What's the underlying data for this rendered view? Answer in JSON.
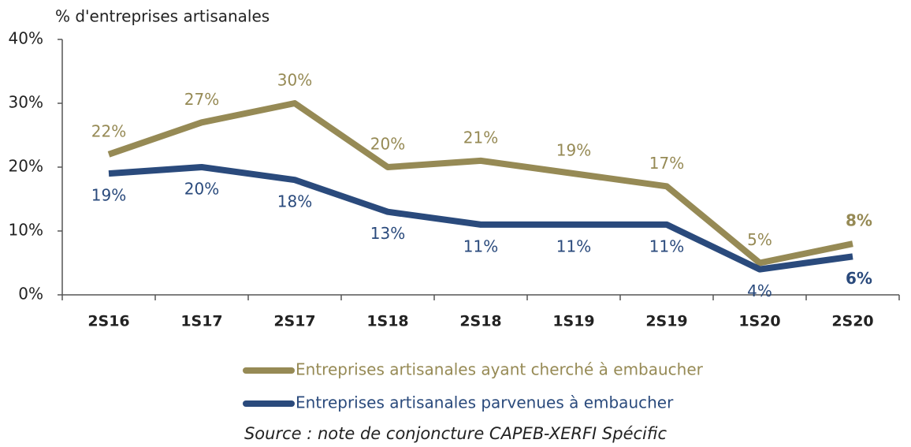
{
  "chart_data": {
    "type": "line",
    "y_axis_label": "% d'entreprises artisanales",
    "categories": [
      "2S16",
      "1S17",
      "2S17",
      "1S18",
      "2S18",
      "1S19",
      "2S19",
      "1S20",
      "2S20"
    ],
    "series": [
      {
        "name": "Entreprises artisanales ayant cherché à embaucher",
        "color": "#968a55",
        "values": [
          22,
          27,
          30,
          20,
          21,
          19,
          17,
          5,
          8
        ],
        "value_labels": [
          "22%",
          "27%",
          "30%",
          "20%",
          "21%",
          "19%",
          "17%",
          "5%",
          "8%"
        ]
      },
      {
        "name": "Entreprises artisanales parvenues à embaucher",
        "color": "#2a4a7c",
        "values": [
          19,
          20,
          18,
          13,
          11,
          11,
          11,
          4,
          6
        ],
        "value_labels": [
          "19%",
          "20%",
          "18%",
          "13%",
          "11%",
          "11%",
          "11%",
          "4%",
          "6%"
        ]
      }
    ],
    "ylim": [
      0,
      40
    ],
    "yticks": [
      {
        "value": 0,
        "label": "0%"
      },
      {
        "value": 10,
        "label": "10%"
      },
      {
        "value": 20,
        "label": "20%"
      },
      {
        "value": 30,
        "label": "30%"
      },
      {
        "value": 40,
        "label": "40%"
      }
    ],
    "legend": "bottom",
    "source": "Source : note de conjoncture CAPEB-XERFI Spécific"
  }
}
